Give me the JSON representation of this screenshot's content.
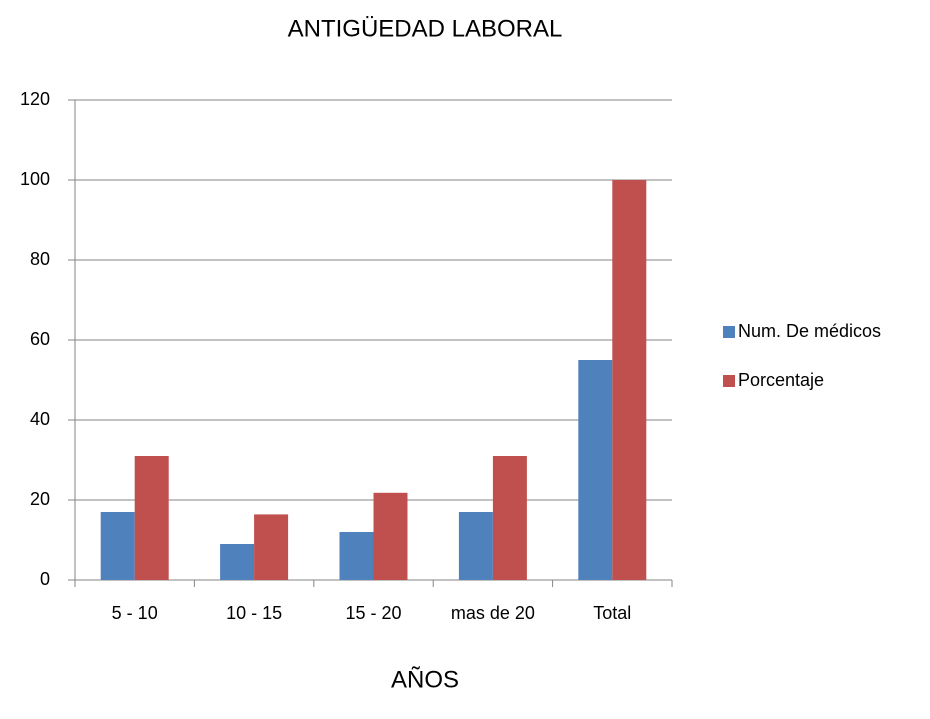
{
  "chart_data": {
    "type": "bar",
    "title": "ANTIGÜEDAD LABORAL",
    "x_label": "AÑOS",
    "categories": [
      "5 - 10",
      "10 - 15",
      "15 - 20",
      "mas de 20",
      "Total"
    ],
    "series": [
      {
        "name": "Num. De médicos",
        "color": "#4f81bd",
        "values": [
          17,
          9,
          12,
          17,
          55
        ]
      },
      {
        "name": "Porcentaje",
        "color": "#c0504d",
        "values": [
          31,
          16.4,
          21.8,
          31,
          100
        ]
      }
    ],
    "ylim": [
      0,
      120
    ],
    "yticks": [
      0,
      20,
      40,
      60,
      80,
      100,
      120
    ],
    "grid": true,
    "legend": "right"
  }
}
